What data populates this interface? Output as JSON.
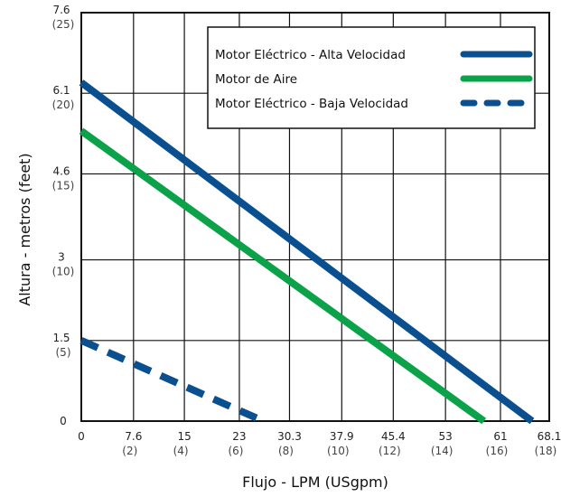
{
  "chart_data": {
    "type": "line",
    "xlabel": "Flujo - LPM (USgpm)",
    "ylabel": "Altura - metros (feet)",
    "xlim": [
      0,
      68.1
    ],
    "ylim": [
      0,
      7.6
    ],
    "grid": true,
    "legend_position": "top-right",
    "x_ticks": [
      {
        "value": 0,
        "label": "0",
        "sub": ""
      },
      {
        "value": 7.6,
        "label": "7.6",
        "sub": "(2)"
      },
      {
        "value": 15,
        "label": "15",
        "sub": "(4)"
      },
      {
        "value": 23,
        "label": "23",
        "sub": "(6)"
      },
      {
        "value": 30.3,
        "label": "30.3",
        "sub": "(8)"
      },
      {
        "value": 37.9,
        "label": "37.9",
        "sub": "(10)"
      },
      {
        "value": 45.4,
        "label": "45.4",
        "sub": "(12)"
      },
      {
        "value": 53,
        "label": "53",
        "sub": "(14)"
      },
      {
        "value": 61,
        "label": "61",
        "sub": "(16)"
      },
      {
        "value": 68.1,
        "label": "68.1",
        "sub": "(18)"
      }
    ],
    "y_ticks": [
      {
        "value": 0,
        "label": "0",
        "sub": ""
      },
      {
        "value": 1.5,
        "label": "1.5",
        "sub": "(5)"
      },
      {
        "value": 3,
        "label": "3",
        "sub": "(10)"
      },
      {
        "value": 4.6,
        "label": "4.6",
        "sub": "(15)"
      },
      {
        "value": 6.1,
        "label": "6.1",
        "sub": "(20)"
      },
      {
        "value": 7.6,
        "label": "7.6",
        "sub": "(25)"
      }
    ],
    "series": [
      {
        "name": "Motor Eléctrico -  Alta Velocidad",
        "color": "#0a4f8f",
        "dash": false,
        "x": [
          0,
          65.6
        ],
        "y": [
          6.3,
          0
        ]
      },
      {
        "name": "Motor de Aire",
        "color": "#0ca24a",
        "dash": false,
        "x": [
          0,
          58.6
        ],
        "y": [
          5.4,
          0
        ]
      },
      {
        "name": "Motor Eléctrico - Baja Velocidad",
        "color": "#0a4f8f",
        "dash": true,
        "x": [
          0,
          26.5
        ],
        "y": [
          1.5,
          0
        ]
      }
    ]
  }
}
